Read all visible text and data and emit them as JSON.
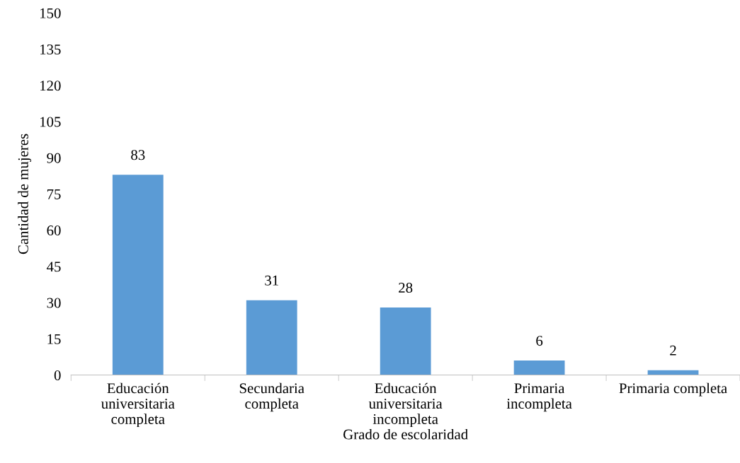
{
  "chart_data": {
    "type": "bar",
    "xlabel": "Grado de escolaridad",
    "ylabel": "Cantidad de mujeres",
    "categories": [
      "Educación\nuniversitaria\ncompleta",
      "Secundaria\ncompleta",
      "Educación\nuniversitaria\nincompleta",
      "Primaria\nincompleta",
      "Primaria completa"
    ],
    "values": [
      83,
      31,
      28,
      6,
      2
    ],
    "color": "#5b9bd5",
    "ylim": [
      0,
      150
    ],
    "yticks": [
      0,
      15,
      30,
      45,
      60,
      75,
      90,
      105,
      120,
      135,
      150
    ],
    "data_labels": true,
    "grid": false,
    "legend": false
  }
}
